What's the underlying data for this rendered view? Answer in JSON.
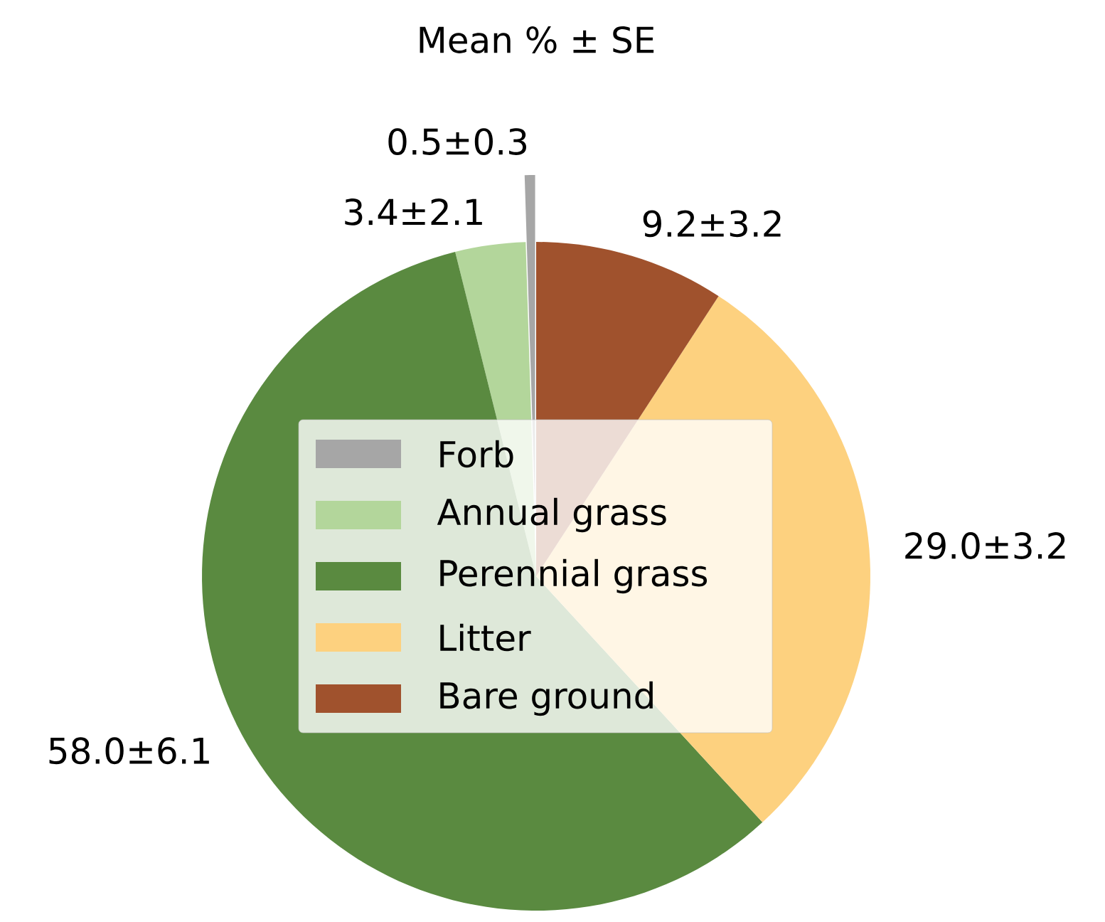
{
  "chart_data": {
    "type": "pie",
    "title": "Mean % ± SE",
    "categories": [
      "Forb",
      "Annual grass",
      "Perennial grass",
      "Litter",
      "Bare ground"
    ],
    "values": [
      0.5,
      3.4,
      58.0,
      29.0,
      9.2
    ],
    "value_labels": [
      "0.5±0.3",
      "3.4±2.1",
      "58.0±6.1",
      "29.0±3.2",
      "9.2±3.2"
    ],
    "colors": [
      "#a6a6a6",
      "#b3d69b",
      "#5a8a40",
      "#fdd17f",
      "#a0522d"
    ],
    "legend": "center"
  }
}
